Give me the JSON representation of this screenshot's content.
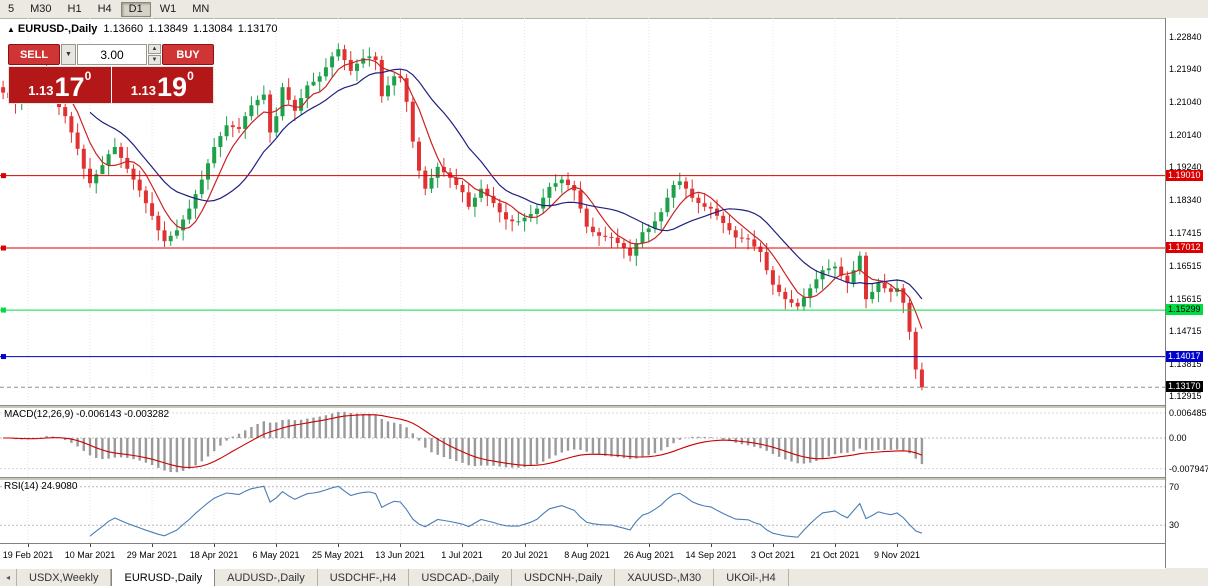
{
  "toolbar": {
    "timeframes": [
      {
        "label": "5",
        "active": false
      },
      {
        "label": "M30",
        "active": false
      },
      {
        "label": "H1",
        "active": false
      },
      {
        "label": "H4",
        "active": false
      },
      {
        "label": "D1",
        "active": true
      },
      {
        "label": "W1",
        "active": false
      },
      {
        "label": "MN",
        "active": false
      }
    ]
  },
  "chart_header": {
    "collapse_icon": "▲",
    "symbol": "EURUSD-,Daily",
    "open": "1.13660",
    "high": "1.13849",
    "low": "1.13084",
    "close": "1.13170"
  },
  "trade_panel": {
    "sell_label": "SELL",
    "buy_label": "BUY",
    "volume": "3.00",
    "volume_dropdown_icon": "▼",
    "volume_spin_up_icon": "▲",
    "volume_spin_down_icon": "▼",
    "sell_price_prefix": "1.13",
    "sell_price_big": "17",
    "sell_price_sup": "0",
    "buy_price_prefix": "1.13",
    "buy_price_big": "19",
    "buy_price_sup": "0"
  },
  "price_axis": {
    "labels": [
      {
        "text": "1.22840",
        "value": 1.2284
      },
      {
        "text": "1.21940",
        "value": 1.2194
      },
      {
        "text": "1.21040",
        "value": 1.2104
      },
      {
        "text": "1.20140",
        "value": 1.2014
      },
      {
        "text": "1.19240",
        "value": 1.1924
      },
      {
        "text": "1.18340",
        "value": 1.1834
      },
      {
        "text": "1.17415",
        "value": 1.17415
      },
      {
        "text": "1.16515",
        "value": 1.16515
      },
      {
        "text": "1.15615",
        "value": 1.15615
      },
      {
        "text": "1.14715",
        "value": 1.14715
      },
      {
        "text": "1.13815",
        "value": 1.13815
      },
      {
        "text": "1.12915",
        "value": 1.12915
      }
    ]
  },
  "levels": [
    {
      "label": "1.19010",
      "value": 1.1901,
      "color": "#dd0000",
      "text_color": "#ffffff",
      "current_price": false
    },
    {
      "label": "1.17012",
      "value": 1.17012,
      "color": "#dd0000",
      "text_color": "#ffffff",
      "current_price": false
    },
    {
      "label": "1.15299",
      "value": 1.15299,
      "color": "#00dd44",
      "text_color": "#000000",
      "current_price": false
    },
    {
      "label": "1.14017",
      "value": 1.14017,
      "color": "#0000cc",
      "text_color": "#ffffff",
      "current_price": false
    },
    {
      "label": "1.13170",
      "value": 1.1317,
      "color": "#000000",
      "text_color": "#ffffff",
      "current_price": true
    }
  ],
  "chart_data": {
    "type": "candlestick",
    "title": "EURUSD-,Daily",
    "symbol": "EURUSD-",
    "timeframe": "Daily",
    "last_ohlc": {
      "open": 1.1366,
      "high": 1.13849,
      "low": 1.13084,
      "close": 1.1317
    },
    "y_range": [
      1.1268,
      1.2336
    ],
    "up_color": "#1fa04a",
    "down_color": "#e03232",
    "overlays": [
      {
        "name": "ma-fast",
        "type": "sma",
        "period": 6,
        "color": "#cc2222"
      },
      {
        "name": "ma-slow",
        "type": "sma",
        "period": 15,
        "color": "#202080"
      }
    ],
    "candles": [
      [
        1.2145,
        1.2163,
        1.2112,
        1.213
      ],
      [
        1.213,
        1.2152,
        1.2098,
        1.2115
      ],
      [
        1.2115,
        1.2128,
        1.2072,
        1.21
      ],
      [
        1.21,
        1.2137,
        1.2082,
        1.2112
      ],
      [
        1.2112,
        1.2135,
        1.2105,
        1.212
      ],
      [
        1.212,
        1.2158,
        1.2118,
        1.214
      ],
      [
        1.214,
        1.2195,
        1.2153,
        1.2165
      ],
      [
        1.2165,
        1.2215,
        1.2147,
        1.2175
      ],
      [
        1.2175,
        1.2185,
        1.2112,
        1.213
      ],
      [
        1.213,
        1.2142,
        1.2068,
        1.209
      ],
      [
        1.209,
        1.212,
        1.2045,
        1.2065
      ],
      [
        1.2065,
        1.2077,
        1.1992,
        1.202
      ],
      [
        1.202,
        1.2045,
        1.1957,
        1.1975
      ],
      [
        1.1975,
        1.1987,
        1.1892,
        1.192
      ],
      [
        1.192,
        1.195,
        1.1868,
        1.188
      ],
      [
        1.188,
        1.1917,
        1.1852,
        1.1905
      ],
      [
        1.1905,
        1.1955,
        1.1912,
        1.193
      ],
      [
        1.193,
        1.1972,
        1.1902,
        1.196
      ],
      [
        1.196,
        1.2005,
        1.1962,
        1.198
      ],
      [
        1.198,
        1.1992,
        1.1922,
        1.195
      ],
      [
        1.195,
        1.198,
        1.1908,
        1.192
      ],
      [
        1.192,
        1.1932,
        1.1862,
        1.189
      ],
      [
        1.189,
        1.1915,
        1.1842,
        1.186
      ],
      [
        1.186,
        1.1872,
        1.1797,
        1.1825
      ],
      [
        1.1825,
        1.1855,
        1.1778,
        1.179
      ],
      [
        1.179,
        1.1802,
        1.1722,
        1.175
      ],
      [
        1.175,
        1.1775,
        1.1704,
        1.172
      ],
      [
        1.172,
        1.1747,
        1.1707,
        1.1735
      ],
      [
        1.1735,
        1.178,
        1.1727,
        1.175
      ],
      [
        1.175,
        1.1792,
        1.1722,
        1.178
      ],
      [
        1.178,
        1.1835,
        1.1768,
        1.181
      ],
      [
        1.181,
        1.1862,
        1.1782,
        1.185
      ],
      [
        1.185,
        1.1915,
        1.1838,
        1.189
      ],
      [
        1.189,
        1.1947,
        1.1862,
        1.1935
      ],
      [
        1.1935,
        1.2005,
        1.1923,
        1.198
      ],
      [
        1.198,
        1.2022,
        1.1952,
        1.201
      ],
      [
        1.201,
        1.2065,
        1.1998,
        1.204
      ],
      [
        1.204,
        1.2052,
        1.2007,
        1.2035
      ],
      [
        1.2035,
        1.206,
        1.2018,
        1.203
      ],
      [
        1.203,
        1.2077,
        1.2002,
        1.2065
      ],
      [
        1.2065,
        1.212,
        1.2053,
        1.2095
      ],
      [
        1.2095,
        1.2122,
        1.2067,
        1.211
      ],
      [
        1.211,
        1.215,
        1.2098,
        1.2125
      ],
      [
        1.2125,
        1.2137,
        1.1992,
        1.202
      ],
      [
        1.202,
        1.209,
        1.2008,
        1.2065
      ],
      [
        1.2065,
        1.2157,
        1.2053,
        1.2145
      ],
      [
        1.2145,
        1.217,
        1.2098,
        1.211
      ],
      [
        1.211,
        1.2122,
        1.2052,
        1.208
      ],
      [
        1.208,
        1.214,
        1.2068,
        1.2115
      ],
      [
        1.2115,
        1.2162,
        1.2087,
        1.215
      ],
      [
        1.215,
        1.2185,
        1.2148,
        1.216
      ],
      [
        1.216,
        1.2187,
        1.2132,
        1.2175
      ],
      [
        1.2175,
        1.2225,
        1.2163,
        1.22
      ],
      [
        1.22,
        1.2242,
        1.2172,
        1.223
      ],
      [
        1.223,
        1.2266,
        1.2218,
        1.225
      ],
      [
        1.225,
        1.2262,
        1.2192,
        1.222
      ],
      [
        1.222,
        1.2245,
        1.2178,
        1.219
      ],
      [
        1.219,
        1.2222,
        1.2162,
        1.221
      ],
      [
        1.221,
        1.225,
        1.2198,
        1.2225
      ],
      [
        1.2225,
        1.2255,
        1.2202,
        1.223
      ],
      [
        1.223,
        1.2242,
        1.2192,
        1.222
      ],
      [
        1.222,
        1.2232,
        1.2102,
        1.212
      ],
      [
        1.212,
        1.2175,
        1.2108,
        1.215
      ],
      [
        1.215,
        1.2187,
        1.2122,
        1.2175
      ],
      [
        1.2175,
        1.2195,
        1.2158,
        1.217
      ],
      [
        1.217,
        1.2182,
        1.2077,
        1.2105
      ],
      [
        1.2105,
        1.2117,
        1.1977,
        1.1995
      ],
      [
        1.1995,
        1.2007,
        1.1893,
        1.1915
      ],
      [
        1.1915,
        1.1927,
        1.1847,
        1.1865
      ],
      [
        1.1865,
        1.192,
        1.1853,
        1.1895
      ],
      [
        1.1895,
        1.1937,
        1.1867,
        1.1925
      ],
      [
        1.1925,
        1.195,
        1.1898,
        1.191
      ],
      [
        1.191,
        1.1922,
        1.1867,
        1.1895
      ],
      [
        1.1895,
        1.192,
        1.1863,
        1.1875
      ],
      [
        1.1875,
        1.1887,
        1.1827,
        1.1855
      ],
      [
        1.1855,
        1.188,
        1.1807,
        1.1815
      ],
      [
        1.1815,
        1.1852,
        1.1787,
        1.184
      ],
      [
        1.184,
        1.189,
        1.1828,
        1.1865
      ],
      [
        1.1865,
        1.1877,
        1.1817,
        1.1845
      ],
      [
        1.1845,
        1.187,
        1.1813,
        1.1825
      ],
      [
        1.1825,
        1.1837,
        1.1772,
        1.18
      ],
      [
        1.18,
        1.1825,
        1.1752,
        1.178
      ],
      [
        1.178,
        1.1792,
        1.1747,
        1.1775
      ],
      [
        1.1775,
        1.18,
        1.1763,
        1.1775
      ],
      [
        1.1775,
        1.1797,
        1.1747,
        1.1785
      ],
      [
        1.1785,
        1.182,
        1.1773,
        1.1795
      ],
      [
        1.1795,
        1.1822,
        1.1767,
        1.181
      ],
      [
        1.181,
        1.1865,
        1.1798,
        1.184
      ],
      [
        1.184,
        1.1882,
        1.1812,
        1.187
      ],
      [
        1.187,
        1.1905,
        1.1858,
        1.188
      ],
      [
        1.188,
        1.1902,
        1.1852,
        1.189
      ],
      [
        1.189,
        1.191,
        1.1863,
        1.1875
      ],
      [
        1.1875,
        1.1887,
        1.1832,
        1.186
      ],
      [
        1.186,
        1.1885,
        1.1798,
        1.181
      ],
      [
        1.181,
        1.1822,
        1.1742,
        1.176
      ],
      [
        1.176,
        1.1785,
        1.1733,
        1.1745
      ],
      [
        1.1745,
        1.1757,
        1.1707,
        1.1735
      ],
      [
        1.1735,
        1.176,
        1.172,
        1.1732
      ],
      [
        1.1732,
        1.1744,
        1.1702,
        1.173
      ],
      [
        1.173,
        1.1755,
        1.1703,
        1.1715
      ],
      [
        1.1715,
        1.1727,
        1.1672,
        1.17
      ],
      [
        1.17,
        1.1725,
        1.1664,
        1.168
      ],
      [
        1.168,
        1.1727,
        1.1652,
        1.1715
      ],
      [
        1.1715,
        1.177,
        1.1703,
        1.1745
      ],
      [
        1.1745,
        1.1767,
        1.1717,
        1.1755
      ],
      [
        1.1755,
        1.18,
        1.1743,
        1.1775
      ],
      [
        1.1775,
        1.1812,
        1.1747,
        1.18
      ],
      [
        1.18,
        1.1865,
        1.1788,
        1.184
      ],
      [
        1.184,
        1.1887,
        1.1812,
        1.1875
      ],
      [
        1.1875,
        1.1909,
        1.1863,
        1.1885
      ],
      [
        1.1885,
        1.1897,
        1.1837,
        1.1865
      ],
      [
        1.1865,
        1.189,
        1.1828,
        1.184
      ],
      [
        1.184,
        1.1852,
        1.1797,
        1.1825
      ],
      [
        1.1825,
        1.185,
        1.1803,
        1.1815
      ],
      [
        1.1815,
        1.1827,
        1.1782,
        1.181
      ],
      [
        1.181,
        1.1835,
        1.1778,
        1.179
      ],
      [
        1.179,
        1.1802,
        1.1742,
        1.177
      ],
      [
        1.177,
        1.1795,
        1.1738,
        1.175
      ],
      [
        1.175,
        1.1762,
        1.1702,
        1.173
      ],
      [
        1.173,
        1.1755,
        1.1716,
        1.1728
      ],
      [
        1.1728,
        1.174,
        1.1697,
        1.1725
      ],
      [
        1.1725,
        1.175,
        1.1693,
        1.1705
      ],
      [
        1.1705,
        1.1717,
        1.1662,
        1.169
      ],
      [
        1.169,
        1.1715,
        1.1628,
        1.164
      ],
      [
        1.164,
        1.1652,
        1.1572,
        1.16
      ],
      [
        1.16,
        1.1625,
        1.1568,
        1.158
      ],
      [
        1.158,
        1.1592,
        1.1532,
        1.156
      ],
      [
        1.156,
        1.1585,
        1.1538,
        1.155
      ],
      [
        1.155,
        1.1562,
        1.1529,
        1.154
      ],
      [
        1.154,
        1.159,
        1.1528,
        1.1565
      ],
      [
        1.1565,
        1.1602,
        1.1537,
        1.159
      ],
      [
        1.159,
        1.164,
        1.1578,
        1.1615
      ],
      [
        1.1615,
        1.1652,
        1.1587,
        1.164
      ],
      [
        1.164,
        1.167,
        1.1628,
        1.1645
      ],
      [
        1.1645,
        1.1662,
        1.1617,
        1.165
      ],
      [
        1.165,
        1.1675,
        1.1613,
        1.1625
      ],
      [
        1.1625,
        1.1637,
        1.1577,
        1.1605
      ],
      [
        1.1605,
        1.1665,
        1.1593,
        1.164
      ],
      [
        1.164,
        1.1692,
        1.1628,
        1.168
      ],
      [
        1.168,
        1.169,
        1.1535,
        1.156
      ],
      [
        1.156,
        1.1605,
        1.1548,
        1.158
      ],
      [
        1.158,
        1.1617,
        1.1552,
        1.1605
      ],
      [
        1.1605,
        1.163,
        1.1578,
        1.159
      ],
      [
        1.159,
        1.1602,
        1.1552,
        1.158
      ],
      [
        1.158,
        1.1615,
        1.1568,
        1.159
      ],
      [
        1.159,
        1.1602,
        1.1522,
        1.155
      ],
      [
        1.155,
        1.1562,
        1.1448,
        1.147
      ],
      [
        1.147,
        1.1482,
        1.134,
        1.1366
      ],
      [
        1.1366,
        1.13849,
        1.13084,
        1.1317
      ]
    ]
  },
  "macd": {
    "label": "MACD(12,26,9) -0.006143 -0.003282",
    "params": [
      12,
      26,
      9
    ],
    "main_value": -0.006143,
    "signal_value": -0.003282,
    "histogram_color": "#9a9a9a",
    "signal_color": "#cc0000",
    "axis_labels": [
      {
        "text": "0.006485",
        "value": 0.006485
      },
      {
        "text": "0.00",
        "value": 0
      },
      {
        "text": "-0.007947",
        "value": -0.007947
      }
    ]
  },
  "rsi": {
    "label": "RSI(14) 24.9080",
    "period": 14,
    "value": 24.908,
    "line_color": "#4a7eb5",
    "levels": [
      {
        "text": "70",
        "value": 70
      },
      {
        "text": "30",
        "value": 30
      }
    ]
  },
  "x_axis": {
    "labels": [
      {
        "text": "19 Feb 2021",
        "index": 4
      },
      {
        "text": "10 Mar 2021",
        "index": 14
      },
      {
        "text": "29 Mar 2021",
        "index": 24
      },
      {
        "text": "18 Apr 2021",
        "index": 34
      },
      {
        "text": "6 May 2021",
        "index": 44
      },
      {
        "text": "25 May 2021",
        "index": 54
      },
      {
        "text": "13 Jun 2021",
        "index": 64
      },
      {
        "text": "1 Jul 2021",
        "index": 74
      },
      {
        "text": "20 Jul 2021",
        "index": 84
      },
      {
        "text": "8 Aug 2021",
        "index": 94
      },
      {
        "text": "26 Aug 2021",
        "index": 104
      },
      {
        "text": "14 Sep 2021",
        "index": 114
      },
      {
        "text": "3 Oct 2021",
        "index": 124
      },
      {
        "text": "21 Oct 2021",
        "index": 134
      },
      {
        "text": "9 Nov 2021",
        "index": 144
      }
    ]
  },
  "tabs": {
    "scroll_left_icon": "◂",
    "items": [
      {
        "label": "USDX,Weekly",
        "active": false
      },
      {
        "label": "EURUSD-,Daily",
        "active": true
      },
      {
        "label": "AUDUSD-,Daily",
        "active": false
      },
      {
        "label": "USDCHF-,H4",
        "active": false
      },
      {
        "label": "USDCAD-,Daily",
        "active": false
      },
      {
        "label": "USDCNH-,Daily",
        "active": false
      },
      {
        "label": "XAUUSD-,M30",
        "active": false
      },
      {
        "label": "UKOil-,H4",
        "active": false
      }
    ]
  }
}
